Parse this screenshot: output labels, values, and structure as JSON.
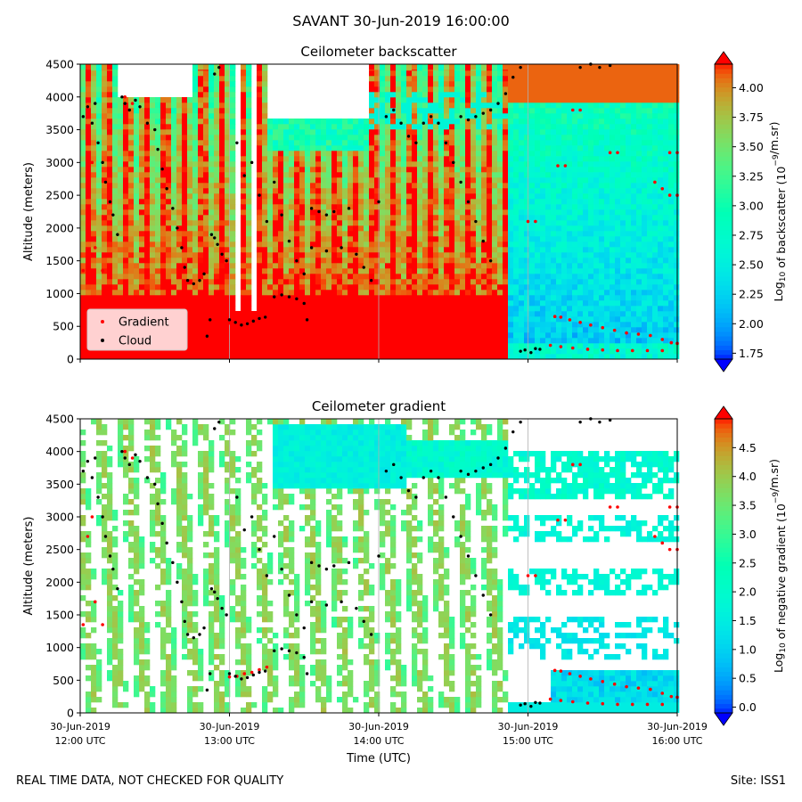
{
  "figure": {
    "suptitle": "SAVANT 30-Jun-2019 16:00:00",
    "footer_left": "REAL TIME DATA, NOT CHECKED FOR QUALITY",
    "footer_right": "Site: ISS1"
  },
  "chart_data": [
    {
      "type": "heatmap",
      "title": "Ceilometer backscatter",
      "xlabel": "",
      "ylabel": "Altitude (meters)",
      "ylim": [
        0,
        4500
      ],
      "yticks": [
        0,
        500,
        1000,
        1500,
        2000,
        2500,
        3000,
        3500,
        4000,
        4500
      ],
      "x_range": [
        "12:00",
        "16:00"
      ],
      "vertical_gridlines": [
        "13:00",
        "14:00",
        "15:00"
      ],
      "colormap": "rainbow",
      "colorbar": {
        "label_prefix": "Log",
        "label_sub": "10",
        "label_mid": " of backscatter (10",
        "label_sup": "−9",
        "label_suffix": "/m.sr)",
        "range": [
          1.7,
          4.2
        ],
        "ticks": [
          "4.00",
          "3.75",
          "3.50",
          "3.25",
          "3.00",
          "2.75",
          "2.50",
          "2.25",
          "2.00",
          "1.75"
        ],
        "tick_values": [
          4.0,
          3.75,
          3.5,
          3.25,
          3.0,
          2.75,
          2.5,
          2.25,
          2.0,
          1.75
        ]
      },
      "legend": {
        "placement": "lower-left",
        "entries": [
          {
            "label": "Gradient",
            "color": "#ff0000"
          },
          {
            "label": "Cloud",
            "color": "#000000"
          }
        ]
      }
    },
    {
      "type": "heatmap",
      "title": "Ceilometer gradient",
      "xlabel": "Time (UTC)",
      "ylabel": "Altitude (meters)",
      "ylim": [
        0,
        4500
      ],
      "yticks": [
        0,
        500,
        1000,
        1500,
        2000,
        2500,
        3000,
        3500,
        4000,
        4500
      ],
      "x_range": [
        "12:00",
        "16:00"
      ],
      "xticks": [
        {
          "t": "12:00",
          "line1": "30-Jun-2019",
          "line2": "12:00 UTC"
        },
        {
          "t": "13:00",
          "line1": "30-Jun-2019",
          "line2": "13:00 UTC"
        },
        {
          "t": "14:00",
          "line1": "30-Jun-2019",
          "line2": "14:00 UTC"
        },
        {
          "t": "15:00",
          "line1": "30-Jun-2019",
          "line2": "15:00 UTC"
        },
        {
          "t": "16:00",
          "line1": "30-Jun-2019",
          "line2": "16:00 UTC"
        }
      ],
      "vertical_gridlines": [
        "13:00",
        "14:00",
        "15:00"
      ],
      "colormap": "rainbow",
      "colorbar": {
        "label_prefix": "Log",
        "label_sub": "10",
        "label_mid": " of negative gradient (10",
        "label_sup": "−9",
        "label_suffix": "/m.sr)",
        "range": [
          -0.1,
          5.0
        ],
        "ticks": [
          "4.5",
          "4.0",
          "3.5",
          "3.0",
          "2.5",
          "2.0",
          "1.5",
          "1.0",
          "0.5",
          "0.0"
        ],
        "tick_values": [
          4.5,
          4.0,
          3.5,
          3.0,
          2.5,
          2.0,
          1.5,
          1.0,
          0.5,
          0.0
        ]
      }
    }
  ],
  "cloud_points": [
    [
      12.02,
      3700
    ],
    [
      12.05,
      3850
    ],
    [
      12.08,
      3600
    ],
    [
      12.1,
      3900
    ],
    [
      12.12,
      3300
    ],
    [
      12.15,
      3000
    ],
    [
      12.17,
      2700
    ],
    [
      12.2,
      2400
    ],
    [
      12.22,
      2200
    ],
    [
      12.25,
      1900
    ],
    [
      12.28,
      4000
    ],
    [
      12.3,
      3900
    ],
    [
      12.33,
      3800
    ],
    [
      12.37,
      3950
    ],
    [
      12.4,
      3850
    ],
    [
      12.45,
      3600
    ],
    [
      12.5,
      3500
    ],
    [
      12.52,
      3200
    ],
    [
      12.55,
      2900
    ],
    [
      12.58,
      2600
    ],
    [
      12.62,
      2300
    ],
    [
      12.65,
      2000
    ],
    [
      12.68,
      1700
    ],
    [
      12.7,
      1400
    ],
    [
      12.72,
      1200
    ],
    [
      12.76,
      1150
    ],
    [
      12.8,
      1200
    ],
    [
      12.83,
      1300
    ],
    [
      12.85,
      350
    ],
    [
      12.87,
      600
    ],
    [
      12.88,
      1900
    ],
    [
      12.9,
      1850
    ],
    [
      12.92,
      1750
    ],
    [
      12.95,
      1600
    ],
    [
      12.98,
      1500
    ],
    [
      12.9,
      4350
    ],
    [
      12.93,
      4450
    ],
    [
      13.0,
      600
    ],
    [
      13.04,
      560
    ],
    [
      13.08,
      520
    ],
    [
      13.12,
      540
    ],
    [
      13.16,
      580
    ],
    [
      13.2,
      620
    ],
    [
      13.24,
      640
    ],
    [
      13.05,
      3300
    ],
    [
      13.1,
      2800
    ],
    [
      13.15,
      3000
    ],
    [
      13.2,
      2500
    ],
    [
      13.25,
      2100
    ],
    [
      13.3,
      2700
    ],
    [
      13.35,
      2200
    ],
    [
      13.4,
      1800
    ],
    [
      13.45,
      1500
    ],
    [
      13.5,
      1300
    ],
    [
      13.3,
      950
    ],
    [
      13.35,
      980
    ],
    [
      13.4,
      950
    ],
    [
      13.45,
      920
    ],
    [
      13.5,
      850
    ],
    [
      13.52,
      600
    ],
    [
      13.55,
      2300
    ],
    [
      13.6,
      2250
    ],
    [
      13.65,
      2200
    ],
    [
      13.7,
      2250
    ],
    [
      13.8,
      2300
    ],
    [
      13.55,
      1700
    ],
    [
      13.65,
      1650
    ],
    [
      13.75,
      1700
    ],
    [
      13.85,
      1600
    ],
    [
      13.9,
      1400
    ],
    [
      13.95,
      1200
    ],
    [
      14.0,
      2400
    ],
    [
      14.05,
      3700
    ],
    [
      14.1,
      3800
    ],
    [
      14.15,
      3600
    ],
    [
      14.2,
      3400
    ],
    [
      14.25,
      3300
    ],
    [
      14.3,
      3600
    ],
    [
      14.35,
      3700
    ],
    [
      14.4,
      3600
    ],
    [
      14.45,
      3300
    ],
    [
      14.5,
      3000
    ],
    [
      14.55,
      2700
    ],
    [
      14.6,
      2400
    ],
    [
      14.65,
      2100
    ],
    [
      14.7,
      1800
    ],
    [
      14.75,
      1500
    ],
    [
      14.55,
      3700
    ],
    [
      14.6,
      3650
    ],
    [
      14.65,
      3700
    ],
    [
      14.7,
      3750
    ],
    [
      14.75,
      3800
    ],
    [
      14.8,
      3900
    ],
    [
      14.85,
      4050
    ],
    [
      14.9,
      4300
    ],
    [
      14.95,
      4450
    ],
    [
      14.95,
      120
    ],
    [
      14.98,
      140
    ],
    [
      15.02,
      100
    ],
    [
      15.05,
      160
    ],
    [
      15.08,
      150
    ],
    [
      15.35,
      4450
    ],
    [
      15.42,
      4500
    ],
    [
      15.48,
      4450
    ],
    [
      15.55,
      4480
    ]
  ],
  "gradient_points": [
    [
      12.02,
      1350
    ],
    [
      12.05,
      2700
    ],
    [
      12.08,
      3000
    ],
    [
      12.1,
      1700
    ],
    [
      12.15,
      1350
    ],
    [
      12.3,
      4000
    ],
    [
      12.35,
      3900
    ],
    [
      13.0,
      550
    ],
    [
      13.05,
      560
    ],
    [
      13.1,
      600
    ],
    [
      13.15,
      620
    ],
    [
      13.2,
      660
    ],
    [
      13.25,
      700
    ],
    [
      15.0,
      2100
    ],
    [
      15.05,
      2100
    ],
    [
      15.2,
      2950
    ],
    [
      15.25,
      2950
    ],
    [
      15.3,
      3800
    ],
    [
      15.35,
      3800
    ],
    [
      15.55,
      3150
    ],
    [
      15.6,
      3150
    ],
    [
      15.85,
      2700
    ],
    [
      15.9,
      2600
    ],
    [
      15.95,
      3150
    ],
    [
      16.0,
      3150
    ],
    [
      15.95,
      2500
    ],
    [
      16.0,
      2500
    ],
    [
      15.18,
      650
    ],
    [
      15.22,
      640
    ],
    [
      15.28,
      600
    ],
    [
      15.35,
      560
    ],
    [
      15.42,
      520
    ],
    [
      15.5,
      480
    ],
    [
      15.58,
      440
    ],
    [
      15.66,
      400
    ],
    [
      15.74,
      380
    ],
    [
      15.82,
      360
    ],
    [
      15.9,
      300
    ],
    [
      15.96,
      250
    ],
    [
      16.0,
      240
    ],
    [
      15.15,
      210
    ],
    [
      15.22,
      190
    ],
    [
      15.3,
      170
    ],
    [
      15.4,
      150
    ],
    [
      15.5,
      140
    ],
    [
      15.6,
      130
    ],
    [
      15.7,
      130
    ],
    [
      15.8,
      130
    ],
    [
      15.9,
      130
    ]
  ]
}
